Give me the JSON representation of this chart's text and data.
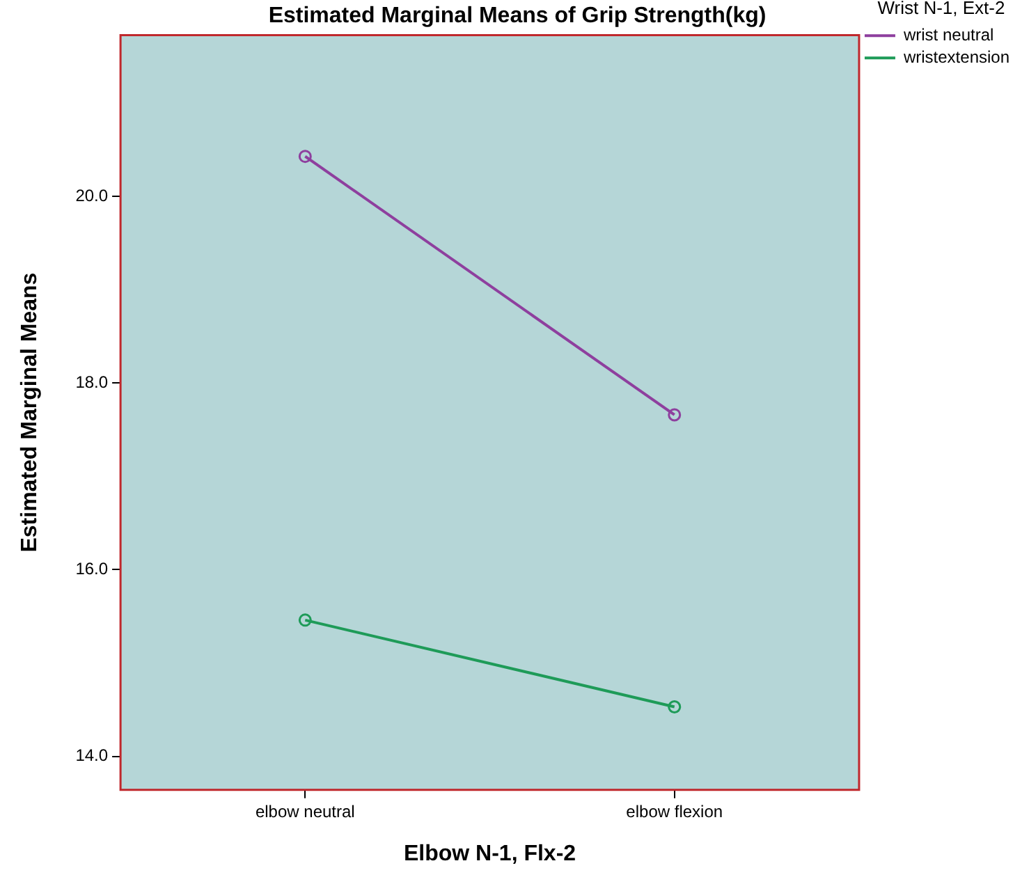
{
  "chart_data": {
    "type": "line",
    "title": "Estimated Marginal Means of Grip Strength(kg)",
    "xlabel": "Elbow N-1, Flx-2",
    "ylabel": "Estimated Marginal Means",
    "legend_title": "Wrist N-1, Ext-2",
    "categories": [
      "elbow neutral",
      "elbow flexion"
    ],
    "series": [
      {
        "name": "wrist neutral",
        "color": "#8e3f9e",
        "values": [
          20.43,
          17.66
        ]
      },
      {
        "name": "wristextension",
        "color": "#1e9b58",
        "values": [
          15.46,
          14.53
        ]
      }
    ],
    "ylim": [
      13.64,
      21.73
    ],
    "yticks": [
      {
        "value": 14,
        "label": "14.0"
      },
      {
        "value": 16,
        "label": "16.0"
      },
      {
        "value": 18,
        "label": "18.0"
      },
      {
        "value": 20,
        "label": "20.0"
      }
    ],
    "grid": false,
    "legend": "top right",
    "marker": "circle",
    "line_style": "solid"
  }
}
